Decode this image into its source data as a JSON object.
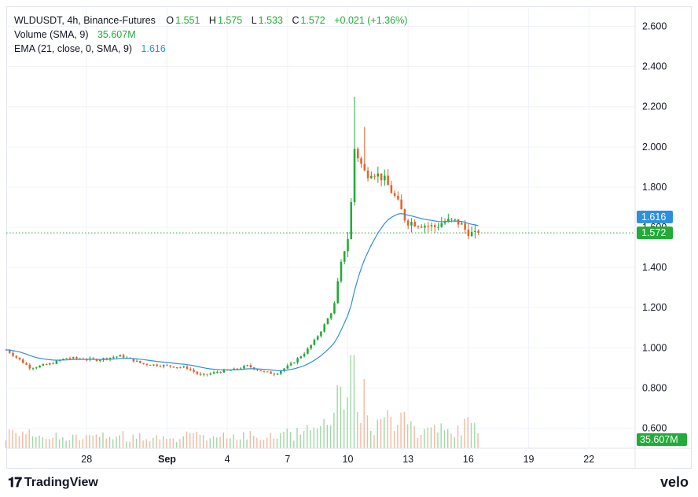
{
  "header": {
    "symbol_line": "WLDUSDT, 4h, Binance-Futures",
    "open_label": "O",
    "open_value": "1.551",
    "high_label": "H",
    "high_value": "1.575",
    "low_label": "L",
    "low_value": "1.533",
    "close_label": "C",
    "close_value": "1.572",
    "change": "+0.021 (+1.36%)",
    "volume_label": "Volume (SMA, 9)",
    "volume_value": "35.607M",
    "ema_label": "EMA (21, close, 0, SMA, 9)",
    "ema_value": "1.616"
  },
  "branding": {
    "tradingview": "TradingView",
    "velo": "velo"
  },
  "colors": {
    "up": "#22ab36",
    "down": "#e8612c",
    "ema": "#2f8fdd",
    "last_price": "#22ab36",
    "grid": "#f0f3fa"
  },
  "chart_data": {
    "type": "candlestick",
    "symbol": "WLDUSDT",
    "interval": "4h",
    "exchange": "Binance-Futures",
    "price_axis": {
      "ticks": [
        "2.600",
        "2.400",
        "2.200",
        "2.000",
        "1.800",
        "1.600",
        "1.400",
        "1.200",
        "1.000",
        "0.800",
        "0.600"
      ],
      "ylim": [
        0.5,
        2.7
      ]
    },
    "time_axis": {
      "ticks": [
        "28",
        "Sep",
        "4",
        "7",
        "10",
        "13",
        "16",
        "19",
        "22"
      ],
      "tick_days": [
        -4,
        0,
        3,
        6,
        9,
        12,
        15,
        18,
        21
      ],
      "xlim": [
        -8,
        23.3
      ]
    },
    "last_price_tag": "1.572",
    "ema_tag": "1.616",
    "volume_tag": "35.607M",
    "anchors": [
      [
        -8.0,
        0.99
      ],
      [
        -6.8,
        0.9
      ],
      [
        -5.8,
        0.92
      ],
      [
        -5.0,
        0.95
      ],
      [
        -3.5,
        0.94
      ],
      [
        -2.3,
        0.96
      ],
      [
        -1.2,
        0.92
      ],
      [
        0.0,
        0.91
      ],
      [
        1.0,
        0.9
      ],
      [
        1.7,
        0.86
      ],
      [
        2.5,
        0.88
      ],
      [
        3.3,
        0.89
      ],
      [
        4.0,
        0.91
      ],
      [
        4.8,
        0.88
      ],
      [
        5.4,
        0.87
      ],
      [
        6.2,
        0.92
      ],
      [
        6.9,
        0.98
      ],
      [
        7.3,
        1.03
      ],
      [
        7.7,
        1.09
      ],
      [
        8.3,
        1.2
      ],
      [
        8.7,
        1.43
      ],
      [
        8.85,
        1.5
      ],
      [
        9.1,
        1.58
      ],
      [
        9.3,
        2.0
      ],
      [
        9.55,
        1.94
      ],
      [
        9.9,
        1.86
      ],
      [
        10.2,
        1.88
      ],
      [
        10.8,
        1.84
      ],
      [
        11.4,
        1.74
      ],
      [
        11.9,
        1.63
      ],
      [
        12.5,
        1.62
      ],
      [
        13.3,
        1.6
      ],
      [
        13.8,
        1.63
      ],
      [
        14.3,
        1.63
      ],
      [
        14.6,
        1.62
      ],
      [
        14.8,
        1.59
      ],
      [
        15.3,
        1.56
      ],
      [
        15.6,
        1.572
      ]
    ],
    "volume_scale_max": 0.98
  }
}
